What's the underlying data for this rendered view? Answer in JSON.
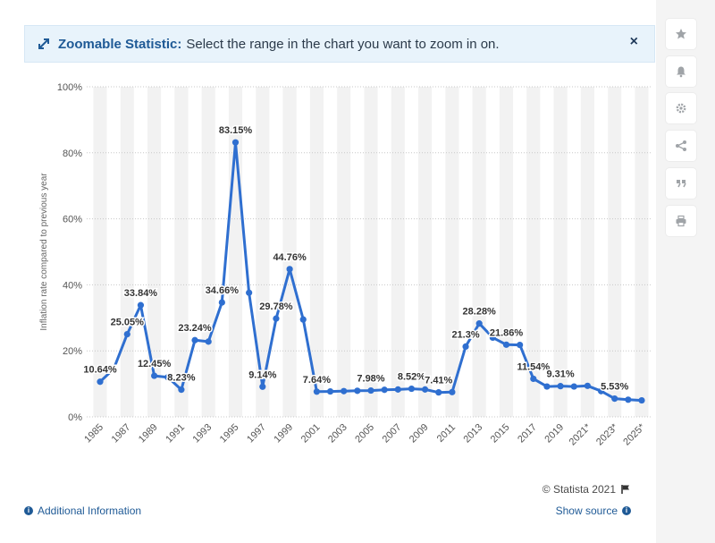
{
  "banner": {
    "title": "Zoomable Statistic:",
    "text": "Select the range in the chart you want to zoom in on.",
    "close": "×"
  },
  "sidebar": {
    "icons": [
      "star-icon",
      "bell-icon",
      "gear-icon",
      "share-icon",
      "quote-icon",
      "print-icon"
    ]
  },
  "footer": {
    "copyright": "© Statista 2021",
    "additional_info": "Additional Information",
    "show_source": "Show source"
  },
  "colors": {
    "line": "#2f6fd0",
    "band": "#f2f2f2",
    "grid": "#c8c8c8",
    "banner_bg": "#e8f3fb",
    "link": "#1f5a96"
  },
  "chart_data": {
    "type": "line",
    "ylabel": "Inflation rate compared to previous year",
    "ylim": [
      0,
      100
    ],
    "y_ticks": [
      "0%",
      "20%",
      "40%",
      "60%",
      "80%",
      "100%"
    ],
    "x_tick_labels": [
      "1985",
      "1987",
      "1989",
      "1991",
      "1993",
      "1995",
      "1997",
      "1999",
      "2001",
      "2003",
      "2005",
      "2007",
      "2009",
      "2011",
      "2013",
      "2015",
      "2017",
      "2019",
      "2021*",
      "2023*",
      "2025*"
    ],
    "series": [
      {
        "x": [
          "1985",
          "1986",
          "1987",
          "1988",
          "1989",
          "1990",
          "1991",
          "1992",
          "1993",
          "1994",
          "1995",
          "1996",
          "1997",
          "1998",
          "1999",
          "2000",
          "2001",
          "2002",
          "2003",
          "2004",
          "2005",
          "2006",
          "2007",
          "2008",
          "2009",
          "2010",
          "2011",
          "2012",
          "2013",
          "2014",
          "2015",
          "2016",
          "2017",
          "2018",
          "2019",
          "2020",
          "2021*",
          "2022*",
          "2023*",
          "2024*",
          "2025*"
        ],
        "values": [
          10.64,
          14.5,
          25.05,
          33.84,
          12.45,
          12.0,
          8.23,
          23.24,
          22.8,
          34.66,
          83.15,
          37.6,
          9.14,
          29.78,
          44.76,
          29.5,
          7.64,
          7.7,
          7.8,
          7.9,
          7.98,
          8.2,
          8.3,
          8.52,
          8.3,
          7.41,
          7.5,
          21.3,
          28.28,
          24.0,
          21.86,
          21.8,
          11.54,
          9.2,
          9.31,
          9.2,
          9.4,
          7.8,
          5.53,
          5.2,
          5.0
        ],
        "labels": {
          "1985": "10.64%",
          "1987": "25.05%",
          "1988": "33.84%",
          "1989": "12.45%",
          "1991": "8.23%",
          "1992": "23.24%",
          "1994": "34.66%",
          "1995": "83.15%",
          "1997": "9.14%",
          "1998": "29.78%",
          "1999": "44.76%",
          "2001": "7.64%",
          "2005": "7.98%",
          "2008": "8.52%",
          "2010": "7.41%",
          "2012": "21.3%",
          "2013": "28.28%",
          "2015": "21.86%",
          "2017": "11.54%",
          "2019": "9.31%",
          "2023*": "5.53%"
        }
      }
    ]
  }
}
